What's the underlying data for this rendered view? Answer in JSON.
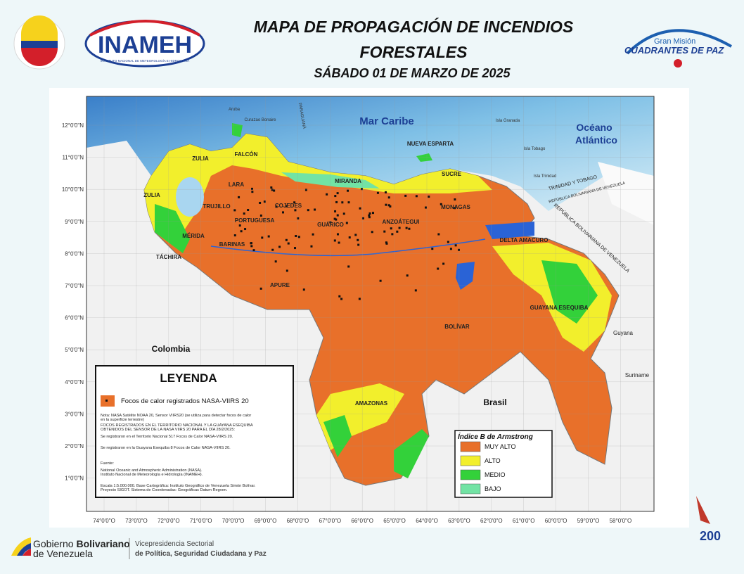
{
  "header": {
    "title_lines": [
      "MAPA DE PROPAGACIÓN DE INCENDIOS",
      "FORESTALES"
    ],
    "date": "SÁBADO 01 DE MARZO DE 2025",
    "inameh": "INAMEH",
    "inameh_full": "INSTITUTO NACIONAL DE METEOROLOGÍA E HIDROLOGÍA",
    "mision_top": "Gran Misión",
    "mision_name": "CUADRANTES DE PAZ"
  },
  "map": {
    "lat_labels": [
      "12°0'0\"N",
      "11°0'0\"N",
      "10°0'0\"N",
      "9°0'0\"N",
      "8°0'0\"N",
      "7°0'0\"N",
      "6°0'0\"N",
      "5°0'0\"N",
      "4°0'0\"N",
      "3°0'0\"N",
      "2°0'0\"N",
      "1°0'0\"N"
    ],
    "lon_labels": [
      "74°0'0\"O",
      "73°0'0\"O",
      "72°0'0\"O",
      "71°0'0\"O",
      "70°0'0\"O",
      "69°0'0\"O",
      "68°0'0\"O",
      "67°0'0\"O",
      "66°0'0\"O",
      "65°0'0\"O",
      "64°0'0\"O",
      "63°0'0\"O",
      "62°0'0\"O",
      "61°0'0\"O",
      "60°0'0\"O",
      "59°0'0\"O",
      "58°0'0\"O"
    ],
    "seas": [
      "Mar Caribe",
      "Océano",
      "Atlántico"
    ],
    "countries": [
      "Colombia",
      "Brasil",
      "Guyana",
      "Suriname",
      "TRINIDAD Y TOBAGO",
      "REPÚBLICA BOLIVARIANA DE VENEZUELA",
      "REPÚBLICA BOLIVARIANA DE VENEZUELA"
    ],
    "islands": [
      "Aruba",
      "Curazao Bonaire",
      "PARAGUANÁ",
      "Isla Granada",
      "Isla Tobago",
      "Isla Trinidad"
    ],
    "states": [
      "FALCÓN",
      "ZULIA",
      "LARA",
      "TRUJILLO",
      "MÉRIDA",
      "TÁCHIRA",
      "PORTUGUESA",
      "BARINAS",
      "COJEDES",
      "MIRANDA",
      "GUÁRICO",
      "ANZOÁTEGUI",
      "SUCRE",
      "NUEVA ESPARTA",
      "MONAGAS",
      "DELTA AMACURO",
      "APURE",
      "BOLÍVAR",
      "AMAZONAS",
      "GUAYANA ESEQUIBA",
      "ZULIA"
    ]
  },
  "legend": {
    "title": "LEYENDA",
    "item": "Focos de calor registrados NASA-VIIRS 20",
    "notes": [
      "Nota: NASA Satélite NOAA 20, Sensor VIIRS20 (se utiliza para detectar focos de calor",
      "en la superficie terrestre)",
      "FOCOS REGISTRADOS EN EL TERRITORIO NACIONAL Y LA GUAYANA ESEQUIBA",
      "OBTENIDOS DEL SENSOR DE LA NASA VIIRS 20 PARA EL DÍA 28/2/2025:",
      "Se registraron en el Territorio Nacional 517 Focos de Calor NASA-VIIRS 20.",
      "Se registraron en la Guayana Esequiba 8 Focos de Calor NASA-VIIRS 20.",
      "Fuente:",
      "National Oceanic and Atmospheric Administration (NASA).",
      "Instituto Nacional de Meteorología e Hidrología (INAMEH).",
      "Escala 1:5.000.000. Base Cartográfica: Instituto Geográfico de Venezuela Simón Bolívar.",
      "Proyecto SIGOT. Sistema de Coordenadas: Geográficas Datum Regven."
    ]
  },
  "armstrong": {
    "title": "Índice B de Armstrong",
    "items": [
      {
        "label": "MUY ALTO",
        "color": "#e8702a"
      },
      {
        "label": "ALTO",
        "color": "#f2ef2c"
      },
      {
        "label": "MEDIO",
        "color": "#33d13a"
      },
      {
        "label": "BAJO",
        "color": "#72e3a4"
      }
    ]
  },
  "footer": {
    "gov_1": "Gobierno ",
    "gov_2": "Bolivariano",
    "gov_3": "de Venezuela",
    "vice_1": "Vicepresidencia Sectorial",
    "vice_2": "de Política, Seguridad Ciudadana y Paz",
    "bicentenario": "200"
  }
}
